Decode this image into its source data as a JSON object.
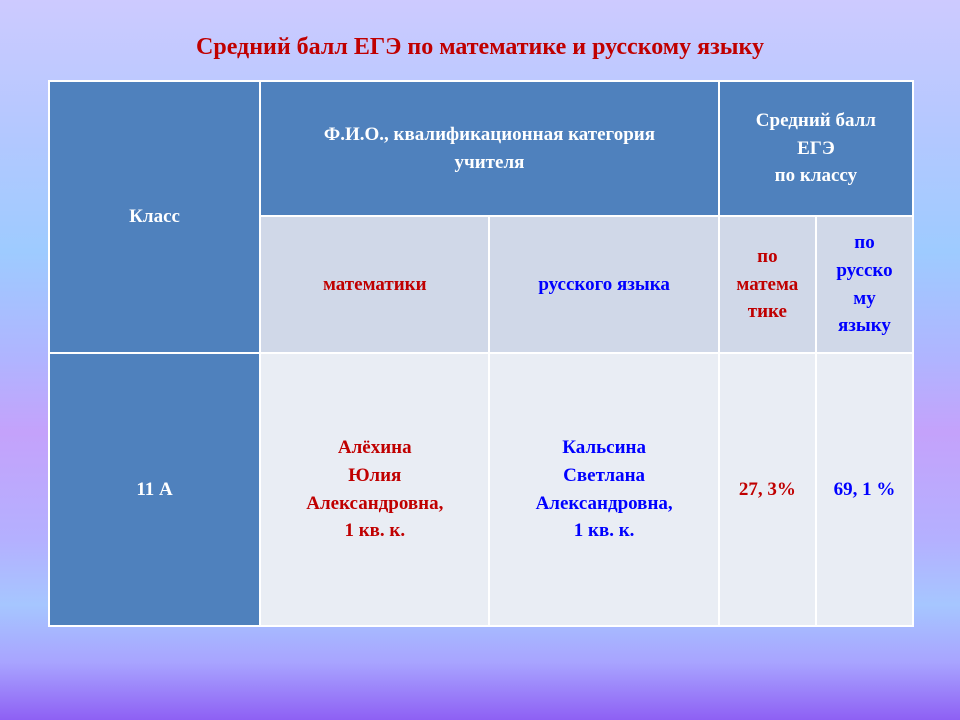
{
  "title": "Средний балл ЕГЭ по математике и русскому языку",
  "table": {
    "header": {
      "class": "Класс",
      "teacher": [
        "Ф.И.О., квалификационная категория",
        "учителя"
      ],
      "avg": [
        "Средний балл",
        "ЕГЭ",
        "по классу"
      ]
    },
    "subheader": {
      "math": "математики",
      "russian": "русского языка",
      "avg_math": [
        "по",
        "матема",
        "тике"
      ],
      "avg_russian": [
        "по",
        "русско",
        "му",
        "языку"
      ]
    },
    "rows": [
      {
        "class": "11 А",
        "math_teacher": [
          "Алёхина",
          "Юлия",
          "Александровна,",
          "1 кв. к."
        ],
        "russian_teacher": [
          "Кальсина",
          "Светлана",
          "Александровна,",
          "1 кв. к."
        ],
        "avg_math": "27, 3%",
        "avg_russian": "69, 1 %"
      }
    ]
  },
  "colors": {
    "header": "#4f81bd",
    "subheader": "#d0d8e8",
    "body": "#e9edf4",
    "red": "#c00000",
    "blue": "#0000ff"
  }
}
